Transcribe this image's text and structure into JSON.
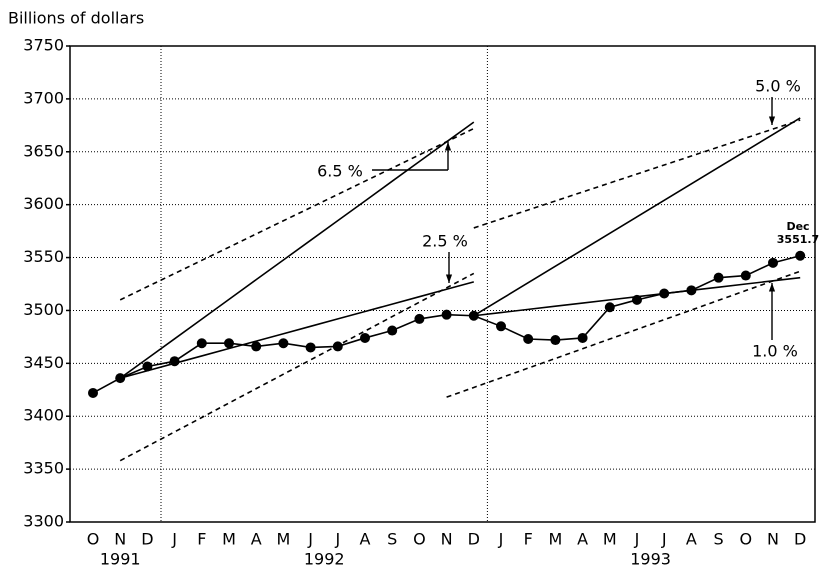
{
  "chart_data": {
    "type": "line",
    "y_axis_label": "Billions of dollars",
    "categories": [
      "O",
      "N",
      "D",
      "J",
      "F",
      "M",
      "A",
      "M",
      "J",
      "J",
      "A",
      "S",
      "O",
      "N",
      "D",
      "J",
      "F",
      "M",
      "A",
      "M",
      "J",
      "J",
      "A",
      "S",
      "O",
      "N",
      "D"
    ],
    "years": [
      "1991",
      "1992",
      "1993"
    ],
    "ylim": [
      3300,
      3750
    ],
    "yticks": [
      3300,
      3350,
      3400,
      3450,
      3500,
      3550,
      3600,
      3650,
      3700,
      3750
    ],
    "grid": true,
    "color": "#000000",
    "series": [
      {
        "style": "marker",
        "values": [
          3422,
          3436,
          3447,
          3452,
          3469,
          3469,
          3466,
          3469,
          3465,
          3466,
          3474,
          3481,
          3492,
          3496,
          3495,
          3485,
          3473,
          3472,
          3474,
          3503,
          3510,
          3516,
          3519,
          3531,
          3533,
          3545,
          3551.7
        ]
      },
      {
        "style": "solid",
        "values": [
          null,
          3436,
          3454.6,
          3473.2,
          3491.8,
          3510.5,
          3529.1,
          3547.7,
          3566.3,
          3584.9,
          3603.5,
          3622.2,
          3640.8,
          3659.4,
          3678,
          null,
          null,
          null,
          null,
          null,
          null,
          null,
          null,
          null,
          null,
          null,
          null
        ]
      },
      {
        "style": "solid",
        "values": [
          null,
          3436,
          3443,
          3450,
          3457,
          3464,
          3471,
          3478,
          3485,
          3492,
          3499,
          3506,
          3513,
          3520,
          3527,
          null,
          null,
          null,
          null,
          null,
          null,
          null,
          null,
          null,
          null,
          null,
          null
        ]
      },
      {
        "style": "dashed",
        "values": [
          null,
          3510,
          3522.5,
          3534.9,
          3547.4,
          3559.8,
          3572.3,
          3584.8,
          3597.2,
          3609.7,
          3622.2,
          3634.6,
          3647.1,
          3659.5,
          3672,
          null,
          null,
          null,
          null,
          null,
          null,
          null,
          null,
          null,
          null,
          null,
          null
        ]
      },
      {
        "style": "dashed",
        "values": [
          null,
          3358,
          3371.6,
          3385.2,
          3398.8,
          3412.5,
          3426.1,
          3439.7,
          3453.3,
          3466.9,
          3480.5,
          3494.2,
          3507.8,
          3521.4,
          3535,
          null,
          null,
          null,
          null,
          null,
          null,
          null,
          null,
          null,
          null,
          null,
          null
        ]
      },
      {
        "style": "solid",
        "values": [
          null,
          null,
          null,
          null,
          null,
          null,
          null,
          null,
          null,
          null,
          null,
          null,
          null,
          null,
          3495,
          3510.6,
          3526.2,
          3541.8,
          3557.3,
          3572.9,
          3588.5,
          3604.1,
          3619.7,
          3635.3,
          3650.8,
          3666.4,
          3682
        ]
      },
      {
        "style": "solid",
        "values": [
          null,
          null,
          null,
          null,
          null,
          null,
          null,
          null,
          null,
          null,
          null,
          null,
          null,
          null,
          3495,
          3498,
          3501,
          3504,
          3507,
          3510,
          3513,
          3516,
          3519,
          3522,
          3525,
          3528,
          3531
        ]
      },
      {
        "style": "dashed",
        "values": [
          null,
          null,
          null,
          null,
          null,
          null,
          null,
          null,
          null,
          null,
          null,
          null,
          null,
          null,
          3578,
          3586.5,
          3595,
          3603.5,
          3612,
          3620.5,
          3629,
          3637.5,
          3646,
          3654.5,
          3663,
          3671.5,
          3680
        ]
      },
      {
        "style": "dashed",
        "values": [
          null,
          null,
          null,
          null,
          null,
          null,
          null,
          null,
          null,
          null,
          null,
          null,
          null,
          3418,
          3427.2,
          3436.3,
          3445.5,
          3454.6,
          3463.8,
          3473,
          3482.1,
          3491.3,
          3500.4,
          3509.6,
          3518.8,
          3527.9,
          3537
        ]
      }
    ],
    "annotations": [
      "6.5 %",
      "2.5 %",
      "5.0 %",
      "1.0 %",
      "Dec"
    ]
  }
}
